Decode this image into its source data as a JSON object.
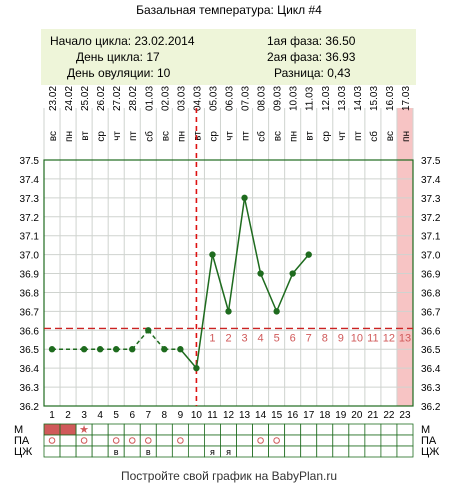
{
  "header": {
    "title": "Базальная температура: Цикл #4"
  },
  "info": {
    "start": "Начало цикла: 23.02.2014",
    "cycle_day": "День цикла: 17",
    "ovulation_day": "День овуляции: 10",
    "phase1": "1ая фаза: 36.50",
    "phase2": "2ая фаза: 36.93",
    "difference": "Разница: 0,43"
  },
  "footer": {
    "text": "Постройте свой график на BabyPlan.ru"
  },
  "chart_data": {
    "type": "line",
    "dates": [
      "23.02",
      "24.02",
      "25.02",
      "26.02",
      "27.02",
      "28.02",
      "01.03",
      "02.03",
      "03.03",
      "04.03",
      "05.03",
      "06.03",
      "07.03",
      "08.03",
      "09.03",
      "10.03",
      "11.03",
      "12.03",
      "13.03",
      "14.03",
      "15.03",
      "16.03",
      "17.03"
    ],
    "weekdays": [
      "вс",
      "пн",
      "вт",
      "ср",
      "чт",
      "пт",
      "сб",
      "вс",
      "пн",
      "вт",
      "ср",
      "чт",
      "пт",
      "сб",
      "вс",
      "пн",
      "вт",
      "ср",
      "чт",
      "пт",
      "сб",
      "вс",
      "пн"
    ],
    "days": [
      1,
      2,
      3,
      4,
      5,
      6,
      7,
      8,
      9,
      10,
      11,
      12,
      13,
      14,
      15,
      16,
      17,
      18,
      19,
      20,
      21,
      22,
      23
    ],
    "series": [
      {
        "values": [
          36.5,
          null,
          36.5,
          36.5,
          36.5,
          36.5,
          36.6,
          36.5,
          36.5,
          36.4,
          37.0,
          36.7,
          37.3,
          36.9,
          36.7,
          36.9,
          37.0,
          null,
          null,
          null,
          null,
          null,
          null
        ]
      }
    ],
    "yticks": [
      "36.2",
      "36.3",
      "36.4",
      "36.5",
      "36.6",
      "36.7",
      "36.8",
      "36.9",
      "37.0",
      "37.1",
      "37.2",
      "37.3",
      "37.4",
      "37.5"
    ],
    "ylim": [
      36.2,
      37.5
    ],
    "coverline": 36.61,
    "ovulation_day_index": 10,
    "post_ovulation_labels": [
      "1",
      "2",
      "3",
      "4",
      "5",
      "6",
      "7",
      "8",
      "9",
      "10",
      "11",
      "12",
      "13"
    ],
    "highlight_day": 23,
    "rows": {
      "labels": [
        "М",
        "ПА",
        "ЦЖ"
      ],
      "m": [
        "fill",
        "fill",
        "★",
        "",
        "",
        "",
        "",
        "",
        "",
        "",
        "",
        "",
        "",
        "",
        "",
        "",
        "",
        "",
        "",
        "",
        "",
        "",
        ""
      ],
      "pa": [
        "o",
        "",
        "o",
        "",
        "o",
        "o",
        "o",
        "",
        "o",
        "",
        "",
        "",
        "",
        "o",
        "o",
        "",
        "",
        "",
        "",
        "",
        "",
        "",
        ""
      ],
      "cj": [
        "",
        "",
        "",
        "",
        "в",
        "",
        "в",
        "",
        "",
        "",
        "я",
        "я",
        "",
        "",
        "",
        "",
        "",
        "",
        "",
        "",
        "",
        "",
        ""
      ]
    },
    "colors": {
      "line": "#1e6b1e",
      "coverline": "#cc2222",
      "ovulation": "#dd1111",
      "highlight": "#f7c4c4",
      "menses": "#d05a5a",
      "post_labels": "#d05a5a",
      "grid": "#cfd3cf",
      "axes": "#1e6b1e"
    }
  }
}
